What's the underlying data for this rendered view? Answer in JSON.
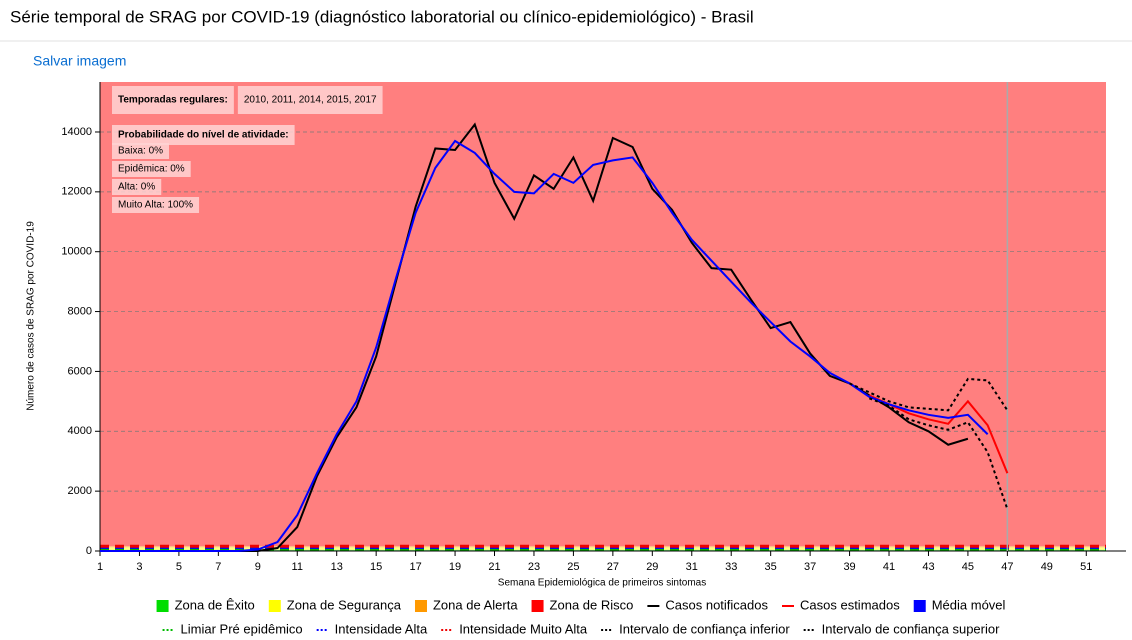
{
  "header": {
    "title": "Série temporal de SRAG por COVID-19 (diagnóstico laboratorial ou clínico-epidemiológico) - Brasil",
    "save_link": "Salvar imagem"
  },
  "chart_data": {
    "type": "line",
    "xlabel": "Semana Epidemiológica de primeiros sintomas",
    "ylabel": "Número de casos de SRAG por COVID-19",
    "xlim": [
      1,
      52
    ],
    "xticks": [
      1,
      3,
      5,
      7,
      9,
      11,
      13,
      15,
      17,
      19,
      21,
      23,
      25,
      27,
      29,
      31,
      33,
      35,
      37,
      39,
      41,
      43,
      45,
      47,
      49,
      51
    ],
    "ylim": [
      0,
      15670
    ],
    "yticks": [
      0,
      2000,
      4000,
      6000,
      8000,
      10000,
      12000,
      14000
    ],
    "grid": true,
    "estimate_cutoff": 47,
    "annotations": [
      [
        "Temporadas regulares:",
        "2010, 2011, 2014, 2015, 2017"
      ],
      [
        "Probabilidade do nível de atividade:",
        "Baixa: 0%",
        "Epidêmica: 0%",
        "Alta: 0%",
        "Muito Alta: 100%"
      ]
    ],
    "zones": [
      {
        "name": "Zona de Êxito",
        "color": "#00dd00",
        "range": [
          0,
          40
        ]
      },
      {
        "name": "Zona de Segurança",
        "color": "#ffff00",
        "range": [
          40,
          120
        ]
      },
      {
        "name": "Zona de Alerta",
        "color": "#ff9900",
        "range": [
          120,
          160
        ]
      },
      {
        "name": "Zona de Risco",
        "color": "#ff0000",
        "range": [
          160,
          15670
        ]
      }
    ],
    "x": [
      1,
      2,
      3,
      4,
      5,
      6,
      7,
      8,
      9,
      10,
      11,
      12,
      13,
      14,
      15,
      16,
      17,
      18,
      19,
      20,
      21,
      22,
      23,
      24,
      25,
      26,
      27,
      28,
      29,
      30,
      31,
      32,
      33,
      34,
      35,
      36,
      37,
      38,
      39,
      40,
      41,
      42,
      43,
      44,
      45,
      46,
      47
    ],
    "series": [
      {
        "name": "Casos notificados",
        "color": "#000000",
        "style": "solid",
        "legend": "line",
        "values": [
          0,
          0,
          0,
          0,
          0,
          0,
          0,
          0,
          0,
          100,
          800,
          2500,
          3800,
          4800,
          6500,
          9000,
          11500,
          13450,
          13400,
          14250,
          12300,
          11100,
          12550,
          12100,
          13150,
          11700,
          13800,
          13500,
          12100,
          11400,
          10300,
          9450,
          9400,
          8400,
          7450,
          7650,
          6600,
          5850,
          5600,
          5200,
          4800,
          4300,
          4000,
          3550,
          3750,
          null,
          null
        ]
      },
      {
        "name": "Casos estimados",
        "color": "#ff0000",
        "style": "solid",
        "legend": "line",
        "values": [
          null,
          null,
          null,
          null,
          null,
          null,
          null,
          null,
          null,
          null,
          null,
          null,
          null,
          null,
          null,
          null,
          null,
          null,
          null,
          null,
          null,
          null,
          null,
          null,
          null,
          null,
          null,
          null,
          null,
          null,
          null,
          null,
          null,
          null,
          null,
          null,
          null,
          null,
          null,
          5200,
          4900,
          4600,
          4400,
          4250,
          5000,
          4200,
          2600
        ]
      },
      {
        "name": "Média móvel",
        "color": "#0000ff",
        "style": "solid",
        "legend": "square",
        "values": [
          0,
          0,
          0,
          0,
          0,
          0,
          0,
          0,
          50,
          300,
          1200,
          2600,
          3900,
          5000,
          6800,
          9100,
          11300,
          12800,
          13700,
          13300,
          12600,
          12000,
          11950,
          12600,
          12300,
          12900,
          13050,
          13150,
          12300,
          11300,
          10400,
          9700,
          9000,
          8300,
          7650,
          7000,
          6500,
          5950,
          5600,
          5150,
          4900,
          4700,
          4550,
          4450,
          4550,
          3900,
          null
        ]
      },
      {
        "name": "Intervalo de confiança inferior",
        "color": "#000000",
        "style": "dotted",
        "legend": "dotted",
        "values": [
          null,
          null,
          null,
          null,
          null,
          null,
          null,
          null,
          null,
          null,
          null,
          null,
          null,
          null,
          null,
          null,
          null,
          null,
          null,
          null,
          null,
          null,
          null,
          null,
          null,
          null,
          null,
          null,
          null,
          null,
          null,
          null,
          null,
          null,
          null,
          null,
          null,
          null,
          null,
          5100,
          4850,
          4400,
          4200,
          4050,
          4300,
          3300,
          1400
        ]
      },
      {
        "name": "Intervalo de confiança superior",
        "color": "#000000",
        "style": "dotted",
        "legend": "dotted",
        "values": [
          null,
          null,
          null,
          null,
          null,
          null,
          null,
          null,
          null,
          null,
          null,
          null,
          null,
          null,
          null,
          null,
          null,
          null,
          null,
          null,
          null,
          null,
          null,
          null,
          null,
          null,
          null,
          null,
          null,
          null,
          null,
          null,
          null,
          null,
          null,
          null,
          null,
          null,
          5600,
          5300,
          5000,
          4800,
          4750,
          4700,
          5750,
          5700,
          4700
        ]
      }
    ],
    "thresholds": [
      {
        "name": "Limiar Pré epidêmico",
        "color": "#00bb00",
        "value": 40
      },
      {
        "name": "Intensidade Alta",
        "color": "#0000ff",
        "value": 120
      },
      {
        "name": "Intensidade Muito Alta",
        "color": "#ee0000",
        "value": 160
      }
    ]
  }
}
